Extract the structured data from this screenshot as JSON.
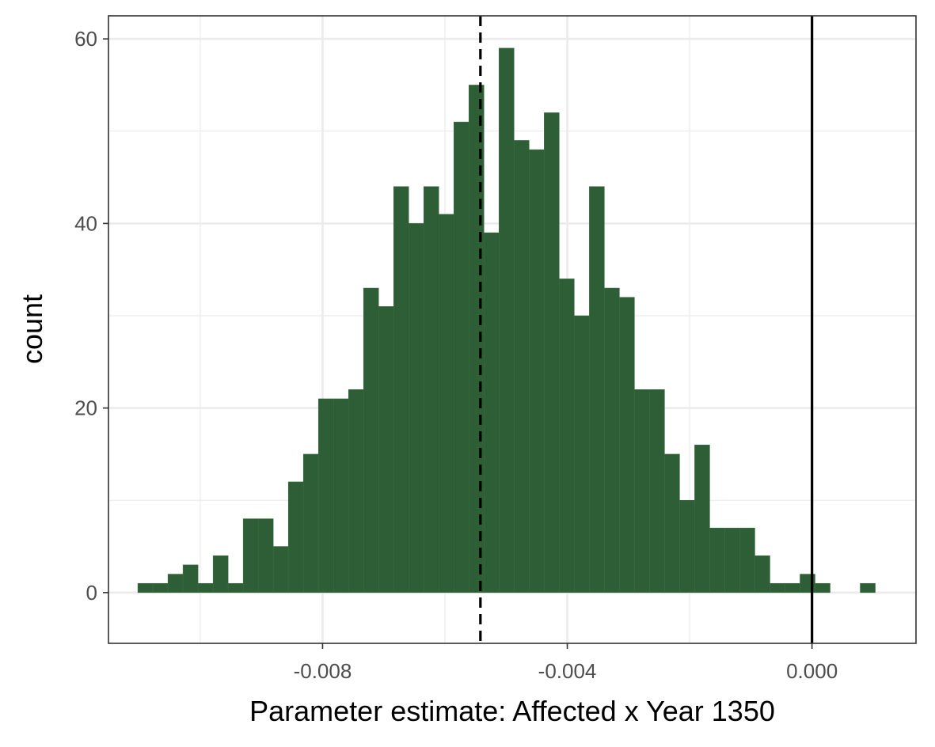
{
  "chart_data": {
    "type": "bar",
    "xlabel": "Parameter estimate: Affected x Year 1350",
    "ylabel": "count",
    "x_bin_width": 0.000246,
    "x_bin_starts": [
      -0.01102,
      -0.010774,
      -0.010528,
      -0.010282,
      -0.010036,
      -0.00979,
      -0.009544,
      -0.009298,
      -0.009052,
      -0.008806,
      -0.00856,
      -0.008314,
      -0.008068,
      -0.007822,
      -0.007576,
      -0.00733,
      -0.007084,
      -0.006838,
      -0.006592,
      -0.006346,
      -0.0061,
      -0.005854,
      -0.005608,
      -0.005362,
      -0.005116,
      -0.00487,
      -0.004624,
      -0.004378,
      -0.004132,
      -0.003886,
      -0.00364,
      -0.003394,
      -0.003148,
      -0.002902,
      -0.002656,
      -0.00241,
      -0.002164,
      -0.001918,
      -0.001672,
      -0.001426,
      -0.00118,
      -0.000934,
      -0.000688,
      -0.000442,
      -0.000196,
      5e-05,
      0.000296,
      0.000542,
      0.000788
    ],
    "counts": [
      1,
      1,
      2,
      3,
      1,
      4,
      1,
      8,
      8,
      5,
      12,
      15,
      21,
      21,
      22,
      33,
      31,
      44,
      40,
      44,
      41,
      51,
      55,
      39,
      59,
      49,
      48,
      52,
      34,
      30,
      44,
      33,
      32,
      22,
      22,
      15,
      10,
      16,
      7,
      7,
      7,
      4,
      1,
      1,
      2,
      1,
      0,
      0,
      1
    ],
    "xlim": [
      -0.0115,
      0.0017
    ],
    "ylim": [
      -5.5,
      62.5
    ],
    "x_ticks": [
      -0.008,
      -0.004,
      0.0
    ],
    "x_tick_labels": [
      "-0.008",
      "-0.004",
      "0.000"
    ],
    "y_ticks": [
      0,
      20,
      40,
      60
    ],
    "y_tick_labels": [
      "0",
      "20",
      "40",
      "60"
    ],
    "x_minor_ticks": [
      -0.01,
      -0.006,
      -0.002
    ],
    "y_minor_ticks": [
      10,
      30,
      50
    ],
    "grid": true,
    "bar_color": "#2e5e35",
    "vlines": [
      {
        "x": -0.00542,
        "style": "dashed",
        "color": "#000000"
      },
      {
        "x": 0.0,
        "style": "solid",
        "color": "#000000"
      }
    ]
  }
}
